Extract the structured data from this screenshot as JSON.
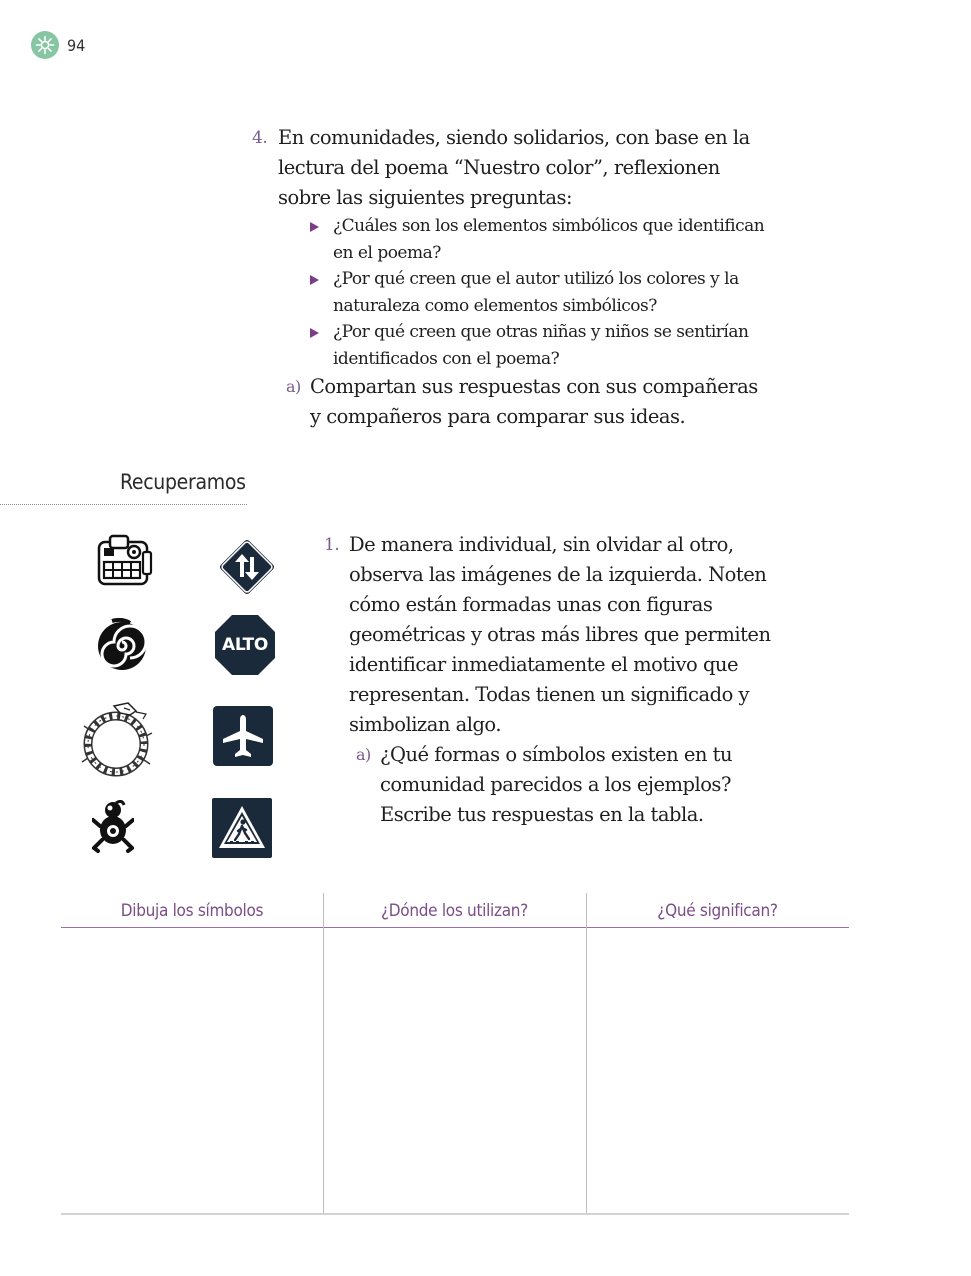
{
  "page_number": "94",
  "header": {
    "badge_icon": "sun-gear-icon",
    "badge_color": "#86c6a2"
  },
  "activity4": {
    "number": "4.",
    "text": "En comunidades, siendo solidarios, con base en la lectura del poema “Nuestro color”, reflexionen sobre las siguientes preguntas:",
    "bullets": [
      "¿Cuáles son los elementos simbólicos que identifican en el poema?",
      "¿Por qué creen que el autor utilizó los colores y la naturaleza como elementos simbólicos?",
      "¿Por qué creen que otras niñas y niños se sentirían identificados con el poema?"
    ],
    "sub": {
      "letter": "a)",
      "text": "Compartan sus respuestas con sus compañeras y compañeros para comparar sus ideas."
    }
  },
  "section_title": "Recuperamos",
  "symbols": {
    "left": [
      "aztec-glyph-icon",
      "spiral-icon",
      "serpent-ring-icon",
      "frog-glyph-icon"
    ],
    "right": [
      "two-way-traffic-sign-icon",
      "stop-sign-icon",
      "airport-sign-icon",
      "pedestrian-crossing-sign-icon"
    ],
    "stop_label": "ALTO"
  },
  "activity1": {
    "number": "1.",
    "text": "De manera individual, sin olvidar al otro, observa las imágenes de la izquierda. Noten cómo están formadas unas con figuras geométricas y otras más libres que permiten identificar inmediatamente el motivo que representan. Todas tienen un significado y simbolizan algo.",
    "sub": {
      "letter": "a)",
      "text": "¿Qué formas o símbolos existen en tu comunidad parecidos a los ejemplos? Escribe tus respuestas en la tabla."
    }
  },
  "table": {
    "headers": [
      "Dibuja los símbolos",
      "¿Dónde los utilizan?",
      "¿Qué significan?"
    ]
  },
  "colors": {
    "accent": "#7b3d87",
    "header_text": "#7a4d87",
    "sign_dark": "#1b2a3a"
  }
}
